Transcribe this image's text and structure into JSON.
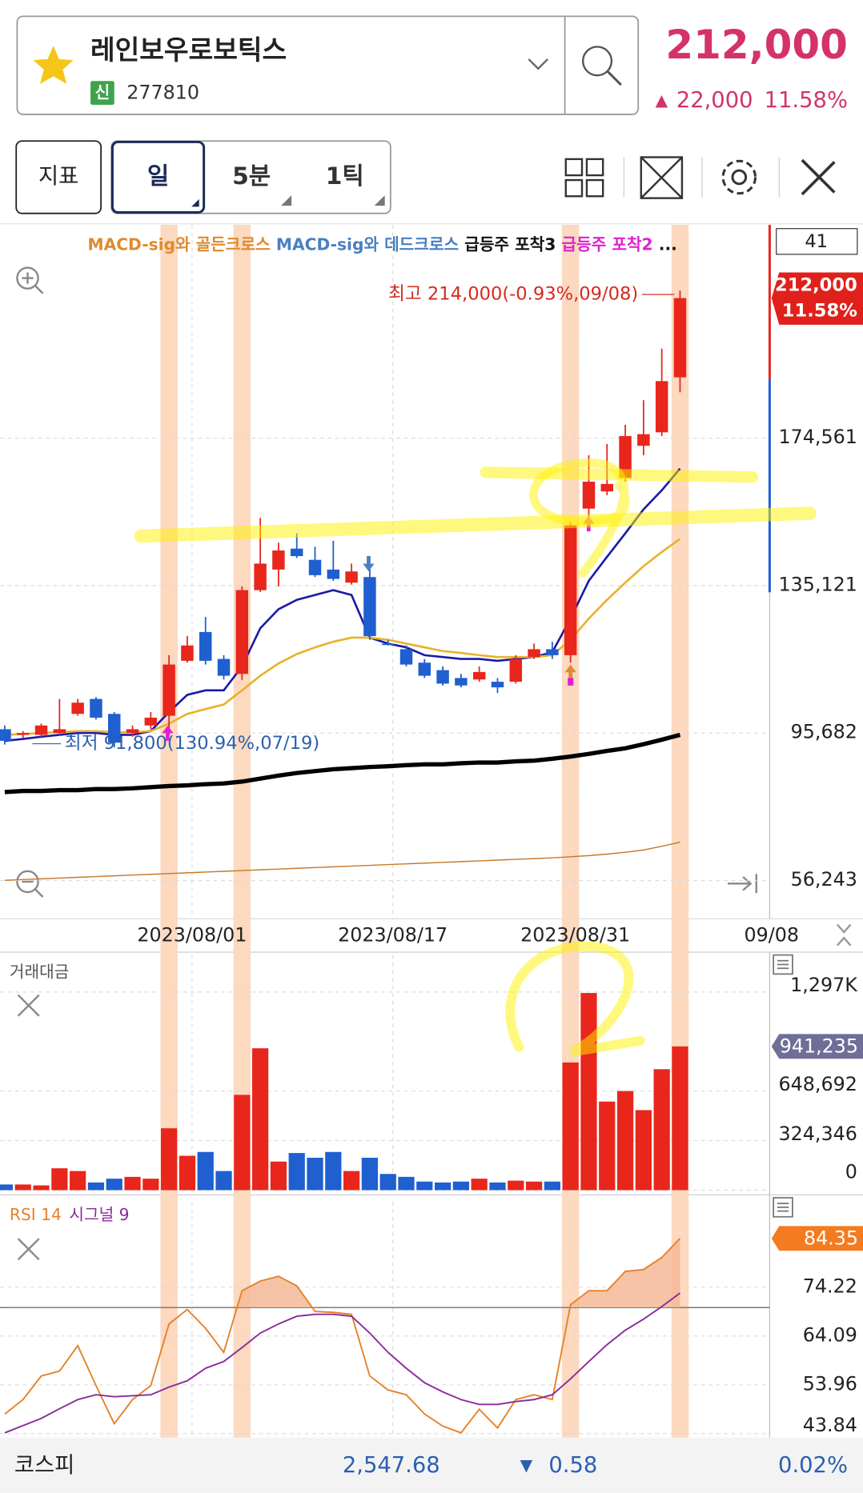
{
  "header": {
    "name": "레인보우로보틱스",
    "badge": "신",
    "code": "277810",
    "price": "212,000",
    "change": "22,000",
    "change_pct": "11.58%"
  },
  "toolbar": {
    "indicator": "지표",
    "periods": [
      "일",
      "5분",
      "1틱"
    ]
  },
  "chart_data": [
    {
      "type": "candlestick",
      "badge": "41",
      "legend": [
        {
          "name": "MACD-sig와 골든크로스",
          "color": "#e08a2e"
        },
        {
          "name": "MACD-sig와 데드크로스",
          "color": "#4a7fc0"
        },
        {
          "name": "급등주 포착3",
          "color": "#111111"
        },
        {
          "name": "급등주 포착2",
          "color": "#e020d0"
        },
        {
          "name": "...",
          "color": "#111111"
        }
      ],
      "annotations": {
        "high": "최고 214,000(-0.93%,09/08)",
        "low": "최저 91,800(130.94%,07/19)"
      },
      "categories": [
        null,
        null,
        null,
        null,
        null,
        null,
        null,
        null,
        null,
        null,
        "2023/08/01",
        null,
        null,
        null,
        null,
        null,
        null,
        null,
        null,
        null,
        null,
        "2023/08/17",
        null,
        null,
        null,
        null,
        null,
        null,
        null,
        null,
        null,
        "2023/08/31",
        null,
        null,
        null,
        null,
        null,
        "09/08"
      ],
      "open": [
        96700,
        95200,
        95200,
        95700,
        100800,
        104800,
        100800,
        95700,
        97700,
        100300,
        115000,
        122700,
        115500,
        111500,
        133900,
        139400,
        145000,
        142000,
        139400,
        135900,
        137400,
        119600,
        118100,
        114500,
        112500,
        110400,
        110000,
        109400,
        109400,
        116000,
        118100,
        116500,
        155700,
        160300,
        163900,
        172500,
        176100,
        190800
      ],
      "high": [
        97700,
        96200,
        98200,
        104800,
        104800,
        105300,
        101300,
        97700,
        101300,
        116500,
        121600,
        126700,
        116500,
        134900,
        153200,
        146600,
        149100,
        145500,
        147100,
        141000,
        141000,
        120600,
        119100,
        115500,
        113500,
        111500,
        113500,
        110400,
        116500,
        119600,
        120100,
        152200,
        170000,
        173000,
        178100,
        184700,
        198500,
        214000
      ],
      "low": [
        92600,
        94400,
        94700,
        95200,
        100300,
        99300,
        91800,
        94700,
        96700,
        95200,
        114500,
        114000,
        110000,
        109900,
        133400,
        134900,
        142500,
        137400,
        136400,
        135400,
        120600,
        119100,
        113500,
        110400,
        108400,
        107900,
        109400,
        106400,
        108900,
        115500,
        115500,
        114500,
        152200,
        159300,
        162900,
        170000,
        175100,
        186800
      ],
      "close": [
        93600,
        95700,
        97700,
        96700,
        103800,
        99800,
        93100,
        96700,
        99800,
        114000,
        119100,
        115000,
        111000,
        133900,
        141000,
        144500,
        143000,
        137900,
        136900,
        138900,
        121600,
        119600,
        114000,
        111000,
        108900,
        108400,
        112000,
        107900,
        115500,
        118100,
        116500,
        151200,
        162900,
        162300,
        175100,
        175600,
        189800,
        212000
      ],
      "up_color": "#e8261c",
      "down_color": "#1f5fcf",
      "series": [
        {
          "color": "#1a1aa6",
          "values": [
            93600,
            94100,
            94700,
            95200,
            95700,
            95700,
            95200,
            95200,
            96200,
            101300,
            105900,
            107100,
            107100,
            113500,
            123700,
            128800,
            131300,
            132600,
            133900,
            132600,
            121200,
            119600,
            118600,
            116500,
            116000,
            115500,
            115500,
            115000,
            115500,
            116000,
            117300,
            126300,
            136400,
            142800,
            149100,
            155500,
            160600,
            166400
          ]
        },
        {
          "color": "#e8b22a",
          "values": [
            95200,
            95400,
            95700,
            95900,
            96200,
            96200,
            95900,
            95900,
            96200,
            98200,
            100800,
            102100,
            103300,
            107100,
            111000,
            114300,
            116800,
            118600,
            120100,
            121200,
            121200,
            120600,
            119600,
            118600,
            117600,
            117100,
            116500,
            116000,
            116000,
            116000,
            116500,
            120600,
            126300,
            131300,
            135900,
            140300,
            144100,
            147600
          ]
        },
        {
          "color": "#000000",
          "values": [
            79900,
            80200,
            80200,
            80400,
            80400,
            80700,
            80700,
            80900,
            81200,
            81500,
            81700,
            82000,
            82200,
            82700,
            83500,
            84300,
            85000,
            85500,
            86000,
            86300,
            86600,
            86800,
            87100,
            87300,
            87300,
            87600,
            87800,
            87800,
            88100,
            88300,
            88800,
            89400,
            90100,
            90900,
            91600,
            92700,
            93900,
            95200
          ]
        },
        {
          "color": "#c8782c",
          "values": [
            56300,
            56500,
            56700,
            56900,
            57100,
            57300,
            57500,
            57700,
            57900,
            58100,
            58300,
            58500,
            58700,
            58900,
            59100,
            59300,
            59500,
            59700,
            59900,
            60100,
            60300,
            60500,
            60700,
            60900,
            61100,
            61300,
            61500,
            61700,
            61900,
            62100,
            62300,
            62600,
            62900,
            63300,
            63800,
            64400,
            65400,
            66500
          ]
        }
      ],
      "signal_bars": [
        9,
        13,
        31,
        37
      ],
      "ylim": [
        46000,
        231600
      ],
      "yticks": [
        {
          "value": 174561,
          "label": "174,561"
        },
        {
          "value": 135121,
          "label": "135,121"
        },
        {
          "value": 95682,
          "label": "95,682"
        },
        {
          "value": 56243,
          "label": "56,243"
        }
      ]
    },
    {
      "type": "bar",
      "title": "거래대금",
      "values": [
        37000,
        37000,
        31000,
        143000,
        125000,
        50000,
        75000,
        87000,
        75000,
        405000,
        225000,
        250000,
        125000,
        624000,
        929000,
        187000,
        243000,
        212000,
        250000,
        125000,
        212000,
        106000,
        87000,
        56000,
        50000,
        56000,
        75000,
        50000,
        62000,
        56000,
        56000,
        836000,
        1291000,
        580000,
        649000,
        524000,
        792000,
        941235
      ],
      "value_labels": [
        null,
        null,
        null,
        null,
        null,
        null,
        null,
        null,
        null,
        null,
        null,
        null,
        null,
        null,
        null,
        null,
        null,
        null,
        null,
        null,
        null,
        null,
        null,
        null,
        null,
        null,
        null,
        null,
        null,
        null,
        null,
        null,
        null,
        null,
        null,
        null,
        null,
        "941,235"
      ],
      "ylim": [
        0,
        1540000
      ],
      "yticks": [
        {
          "value": 1297384,
          "label": "1,297K"
        },
        {
          "value": 648692,
          "label": "648,692"
        },
        {
          "value": 324346,
          "label": "324,346"
        },
        0
      ]
    },
    {
      "type": "line",
      "series": [
        {
          "name": "RSI 14",
          "color": "#e5822a",
          "values": [
            47.9,
            50.9,
            55.8,
            56.8,
            62.1,
            53.8,
            45.9,
            50.9,
            53.8,
            66.6,
            69.6,
            65.7,
            60.7,
            73.5,
            75.5,
            76.5,
            74.5,
            69.2,
            69.0,
            68.6,
            55.8,
            52.9,
            51.9,
            47.9,
            45.4,
            44.0,
            48.9,
            45.0,
            50.9,
            51.9,
            50.9,
            70.6,
            73.5,
            73.5,
            77.5,
            77.9,
            80.4,
            84.35
          ]
        },
        {
          "name": "시그널 9",
          "color": "#8a2a9a",
          "values": [
            44.0,
            45.5,
            47.0,
            49.0,
            50.9,
            51.9,
            51.5,
            51.7,
            51.9,
            53.5,
            54.8,
            57.4,
            58.8,
            61.7,
            64.7,
            66.6,
            68.2,
            68.6,
            68.6,
            68.2,
            64.7,
            60.7,
            57.4,
            54.4,
            52.5,
            50.9,
            49.9,
            49.9,
            50.5,
            50.9,
            51.9,
            55.2,
            58.8,
            62.3,
            65.3,
            67.6,
            70.2,
            73.0
          ]
        }
      ],
      "ref_level": 70,
      "ylim": [
        43,
        92
      ],
      "yticks": [
        74.22,
        64.09,
        53.96,
        43.84
      ]
    }
  ],
  "footer": {
    "index": "코스피",
    "value": "2,547.68",
    "change": "0.58",
    "change_pct": "0.02%"
  }
}
